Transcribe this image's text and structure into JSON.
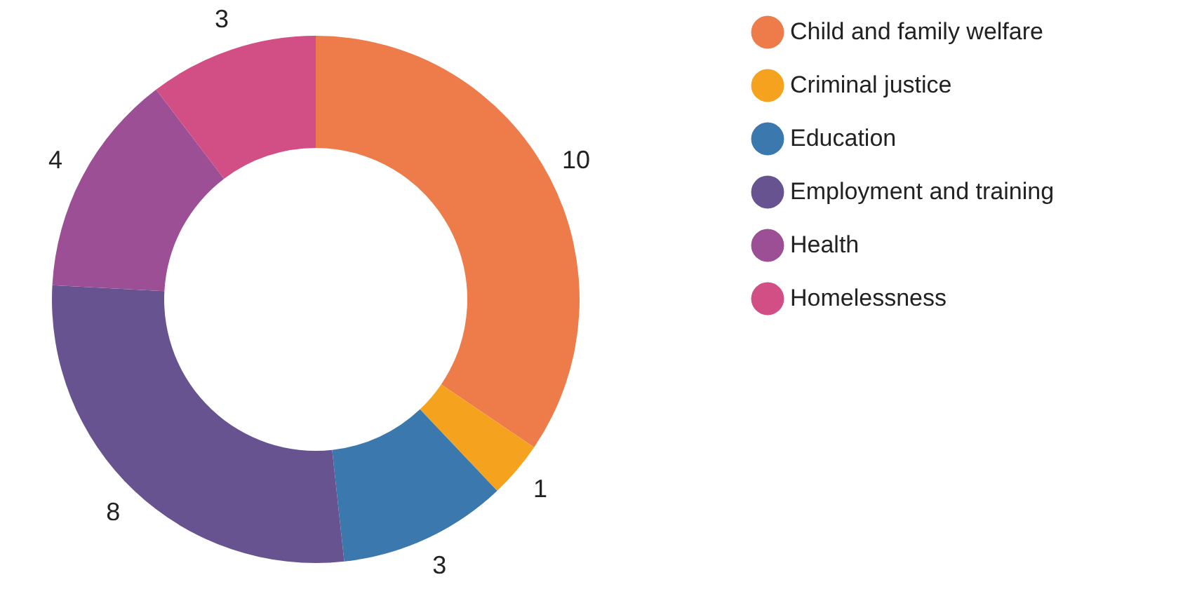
{
  "chart_data": {
    "type": "donut",
    "categories": [
      "Child and family welfare",
      "Criminal justice",
      "Education",
      "Employment and training",
      "Health",
      "Homelessness"
    ],
    "values": [
      10,
      1,
      3,
      8,
      4,
      3
    ],
    "colors": [
      "#ee7b4a",
      "#f5a31e",
      "#3b78ad",
      "#67538f",
      "#9c4f94",
      "#d24f86"
    ],
    "data_labels": true,
    "legend": "top right"
  }
}
